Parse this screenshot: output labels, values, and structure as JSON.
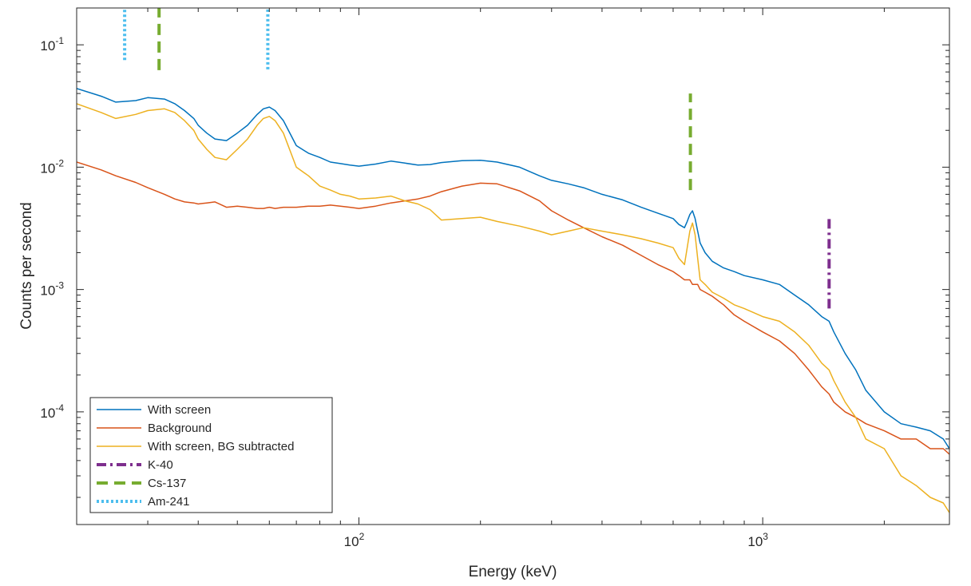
{
  "chart_data": {
    "type": "line",
    "title": "",
    "xlabel": "Energy (keV)",
    "ylabel": "Counts per second",
    "xscale": "log",
    "yscale": "log",
    "xlim": [
      20,
      2900
    ],
    "ylim": [
      1.2e-05,
      0.2
    ],
    "grid": false,
    "legend_position": "bottom-left",
    "x_ticks": [
      {
        "value": 100,
        "base": "10",
        "exp": "2"
      },
      {
        "value": 1000,
        "base": "10",
        "exp": "3"
      }
    ],
    "y_ticks": [
      {
        "value": 0.1,
        "base": "10",
        "exp": "-1"
      },
      {
        "value": 0.01,
        "base": "10",
        "exp": "-2"
      },
      {
        "value": 0.001,
        "base": "10",
        "exp": "-3"
      },
      {
        "value": 0.0001,
        "base": "10",
        "exp": "-4"
      }
    ],
    "series": [
      {
        "name": "With screen",
        "color": "#0072BD",
        "style": "solid",
        "x": [
          20,
          23,
          25,
          28,
          30,
          33,
          35,
          37,
          39,
          40,
          42,
          44,
          47,
          50,
          53,
          56,
          58,
          60,
          62,
          65,
          70,
          75,
          80,
          85,
          90,
          95,
          100,
          110,
          120,
          130,
          140,
          150,
          160,
          180,
          200,
          220,
          250,
          280,
          300,
          330,
          360,
          400,
          450,
          500,
          550,
          600,
          620,
          640,
          650,
          660,
          670,
          680,
          690,
          700,
          720,
          750,
          800,
          850,
          900,
          1000,
          1100,
          1200,
          1300,
          1400,
          1460,
          1500,
          1600,
          1700,
          1800,
          2000,
          2200,
          2400,
          2600,
          2800,
          2900
        ],
        "y": [
          0.044,
          0.038,
          0.034,
          0.035,
          0.037,
          0.036,
          0.033,
          0.029,
          0.025,
          0.022,
          0.019,
          0.017,
          0.0165,
          0.019,
          0.022,
          0.027,
          0.03,
          0.031,
          0.029,
          0.024,
          0.015,
          0.013,
          0.012,
          0.011,
          0.0107,
          0.0104,
          0.0102,
          0.0106,
          0.0112,
          0.0108,
          0.0104,
          0.0105,
          0.0109,
          0.0113,
          0.0114,
          0.011,
          0.01,
          0.0085,
          0.0078,
          0.0073,
          0.0068,
          0.006,
          0.0054,
          0.0047,
          0.0042,
          0.0038,
          0.0034,
          0.0032,
          0.0036,
          0.0041,
          0.0044,
          0.0038,
          0.003,
          0.0024,
          0.002,
          0.0017,
          0.0015,
          0.0014,
          0.0013,
          0.0012,
          0.0011,
          0.0009,
          0.00075,
          0.0006,
          0.00055,
          0.00045,
          0.0003,
          0.00022,
          0.00015,
          0.0001,
          8e-05,
          7.5e-05,
          7e-05,
          6e-05,
          5e-05
        ]
      },
      {
        "name": "Background",
        "color": "#D95319",
        "style": "solid",
        "x": [
          20,
          23,
          25,
          28,
          30,
          33,
          35,
          37,
          39,
          40,
          42,
          44,
          47,
          50,
          53,
          56,
          58,
          60,
          62,
          65,
          70,
          75,
          80,
          85,
          90,
          95,
          100,
          110,
          120,
          130,
          140,
          150,
          160,
          180,
          200,
          220,
          250,
          280,
          300,
          330,
          360,
          400,
          450,
          500,
          550,
          600,
          620,
          640,
          650,
          660,
          670,
          680,
          690,
          700,
          720,
          750,
          800,
          850,
          900,
          1000,
          1100,
          1200,
          1300,
          1400,
          1460,
          1500,
          1600,
          1700,
          1800,
          2000,
          2200,
          2400,
          2600,
          2800,
          2900
        ],
        "y": [
          0.011,
          0.0095,
          0.0085,
          0.0075,
          0.0068,
          0.006,
          0.0055,
          0.0052,
          0.0051,
          0.005,
          0.0051,
          0.0052,
          0.0047,
          0.0048,
          0.0047,
          0.0046,
          0.0046,
          0.0047,
          0.0046,
          0.0047,
          0.0047,
          0.0048,
          0.0048,
          0.0049,
          0.0048,
          0.0047,
          0.0046,
          0.0048,
          0.0051,
          0.0053,
          0.0055,
          0.0058,
          0.0063,
          0.007,
          0.0074,
          0.0073,
          0.0064,
          0.0053,
          0.0044,
          0.0037,
          0.0032,
          0.0027,
          0.0023,
          0.0019,
          0.0016,
          0.0014,
          0.0013,
          0.0012,
          0.0012,
          0.0012,
          0.0011,
          0.0011,
          0.0011,
          0.001,
          0.00095,
          0.00088,
          0.00075,
          0.00062,
          0.00055,
          0.00045,
          0.00038,
          0.0003,
          0.00022,
          0.00016,
          0.00014,
          0.00012,
          0.0001,
          9e-05,
          8e-05,
          7e-05,
          6e-05,
          6e-05,
          5e-05,
          5e-05,
          4.5e-05
        ]
      },
      {
        "name": "With screen, BG subtracted",
        "color": "#EDB120",
        "style": "solid",
        "x": [
          20,
          23,
          25,
          28,
          30,
          33,
          35,
          37,
          39,
          40,
          42,
          44,
          47,
          50,
          53,
          56,
          58,
          60,
          62,
          65,
          70,
          75,
          80,
          85,
          90,
          95,
          100,
          110,
          120,
          130,
          140,
          150,
          160,
          180,
          200,
          220,
          250,
          280,
          300,
          330,
          360,
          400,
          450,
          500,
          550,
          600,
          620,
          640,
          650,
          660,
          670,
          680,
          690,
          700,
          720,
          750,
          800,
          850,
          900,
          1000,
          1100,
          1200,
          1300,
          1400,
          1460,
          1500,
          1600,
          1700,
          1800,
          2000,
          2200,
          2400,
          2600,
          2800,
          2900
        ],
        "y": [
          0.033,
          0.028,
          0.025,
          0.027,
          0.029,
          0.03,
          0.028,
          0.024,
          0.02,
          0.017,
          0.014,
          0.012,
          0.0115,
          0.014,
          0.017,
          0.022,
          0.025,
          0.026,
          0.024,
          0.019,
          0.01,
          0.0085,
          0.007,
          0.0065,
          0.006,
          0.0058,
          0.0055,
          0.0056,
          0.0058,
          0.0053,
          0.005,
          0.0045,
          0.0037,
          0.0038,
          0.0039,
          0.0036,
          0.0033,
          0.003,
          0.0028,
          0.003,
          0.0032,
          0.003,
          0.0028,
          0.0026,
          0.0024,
          0.0022,
          0.0018,
          0.0016,
          0.0022,
          0.003,
          0.0035,
          0.0028,
          0.0018,
          0.0012,
          0.0011,
          0.00095,
          0.00085,
          0.00075,
          0.0007,
          0.0006,
          0.00055,
          0.00045,
          0.00035,
          0.00025,
          0.00022,
          0.00018,
          0.00012,
          9e-05,
          6e-05,
          5e-05,
          3e-05,
          2.5e-05,
          2e-05,
          1.8e-05,
          1.5e-05
        ]
      },
      {
        "name": "K-40",
        "color": "#7E2F8E",
        "style": "dashdot",
        "x": [
          1460,
          1460
        ],
        "y": [
          0.0007,
          0.0038
        ]
      },
      {
        "name": "Cs-137",
        "color": "#77AC30",
        "style": "dashed",
        "x": [
          662,
          662
        ],
        "y": [
          0.0065,
          0.04
        ]
      },
      {
        "name": "Cs-137",
        "color": "#77AC30",
        "style": "dashed",
        "x": [
          32,
          32
        ],
        "y": [
          0.062,
          0.2
        ]
      },
      {
        "name": "Am-241",
        "color": "#4DBEEE",
        "style": "dotted",
        "x": [
          59.5,
          59.5
        ],
        "y": [
          0.063,
          0.2
        ]
      },
      {
        "name": "Am-241",
        "color": "#4DBEEE",
        "style": "dotted",
        "x": [
          26.3,
          26.3
        ],
        "y": [
          0.075,
          0.2
        ]
      }
    ],
    "legend": [
      {
        "label": "With screen",
        "color": "#0072BD",
        "style": "solid"
      },
      {
        "label": "Background",
        "color": "#D95319",
        "style": "solid"
      },
      {
        "label": "With screen, BG subtracted",
        "color": "#EDB120",
        "style": "solid"
      },
      {
        "label": "K-40",
        "color": "#7E2F8E",
        "style": "dashdot"
      },
      {
        "label": "Cs-137",
        "color": "#77AC30",
        "style": "dashed"
      },
      {
        "label": "Am-241",
        "color": "#4DBEEE",
        "style": "dotted"
      }
    ]
  }
}
